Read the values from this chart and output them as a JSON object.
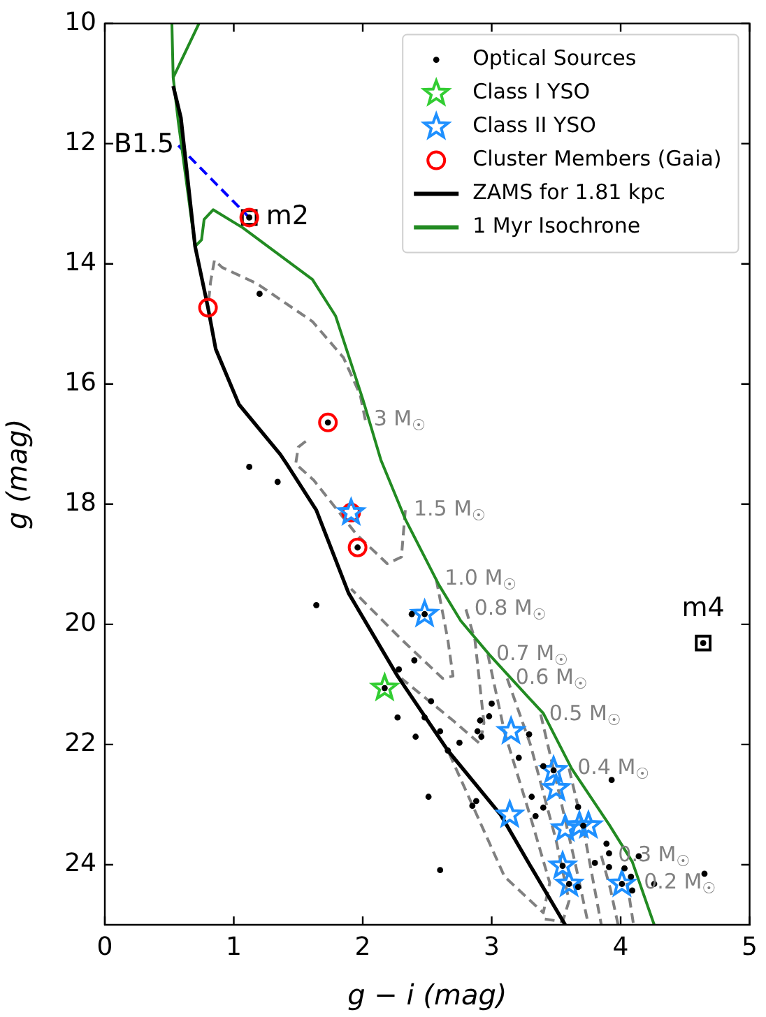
{
  "chart_data": {
    "type": "scatter",
    "xlabel": "g − i (mag)",
    "ylabel": "g (mag)",
    "xlim": [
      0,
      5
    ],
    "ylim": [
      25,
      10
    ],
    "xticks": [
      0,
      1,
      2,
      3,
      4,
      5
    ],
    "yticks": [
      10,
      12,
      14,
      16,
      18,
      20,
      22,
      24
    ],
    "grid": false,
    "legend": "top right",
    "annotations": [
      {
        "text": "B1.5",
        "x": 0.57,
        "y": 12.03
      },
      {
        "text": "m2",
        "x": 1.12,
        "y": 13.23
      },
      {
        "text": "m4",
        "x": 4.64,
        "y": 20.31
      }
    ],
    "series": [
      {
        "name": "Optical Sources",
        "type": "scatter",
        "marker": "circle",
        "color": "#000000",
        "x": [
          1.2,
          1.12,
          1.34,
          1.73,
          1.96,
          1.12,
          4.64,
          1.64,
          2.38,
          2.48,
          2.28,
          2.4,
          2.17,
          2.27,
          2.41,
          2.48,
          2.53,
          2.6,
          2.75,
          2.66,
          2.89,
          2.92,
          2.91,
          2.98,
          3.0,
          3.29,
          3.21,
          2.51,
          2.85,
          2.88,
          3.31,
          3.34,
          3.4,
          2.6,
          3.4,
          3.93,
          3.67,
          3.71,
          3.89,
          3.91,
          4.14,
          3.8,
          3.91,
          4.03,
          4.08,
          4.26,
          3.67,
          4.09,
          4.65,
          3.55,
          3.6,
          4.01,
          3.48
        ],
        "values": [
          14.5,
          17.38,
          17.63,
          16.64,
          18.72,
          13.23,
          20.31,
          19.68,
          19.83,
          19.83,
          20.75,
          20.6,
          21.06,
          21.55,
          21.87,
          21.55,
          21.28,
          21.78,
          21.97,
          22.1,
          21.78,
          21.87,
          21.6,
          21.53,
          21.32,
          21.83,
          22.22,
          22.87,
          23.02,
          22.94,
          22.87,
          23.19,
          23.05,
          24.09,
          22.36,
          22.59,
          23.04,
          23.35,
          23.65,
          23.81,
          23.86,
          23.97,
          24.04,
          24.06,
          24.2,
          24.32,
          24.37,
          24.43,
          24.15,
          24.02,
          24.32,
          24.32,
          22.43
        ]
      },
      {
        "name": "Class I YSO",
        "type": "scatter",
        "marker": "star",
        "color": "#32cd32",
        "x": [
          2.17
        ],
        "values": [
          21.06
        ]
      },
      {
        "name": "Class II YSO",
        "type": "scatter",
        "marker": "star",
        "color": "#1e90ff",
        "x": [
          1.91,
          2.48,
          3.15,
          3.14,
          3.48,
          3.5,
          3.57,
          3.68,
          3.75,
          3.55,
          3.6,
          4.01
        ],
        "values": [
          18.14,
          19.83,
          21.78,
          23.17,
          22.43,
          22.73,
          23.4,
          23.35,
          23.35,
          24.02,
          24.32,
          24.32
        ]
      },
      {
        "name": "Cluster Members (Gaia)",
        "type": "scatter",
        "marker": "circle",
        "color": "#ff0000",
        "x": [
          1.12,
          0.8,
          1.73,
          1.91,
          1.96
        ],
        "values": [
          13.23,
          14.73,
          16.64,
          18.14,
          18.72
        ]
      },
      {
        "name": "ZAMS for 1.81 kpc",
        "type": "line",
        "line_style": "solid",
        "color": "#000000",
        "x": [
          0.53,
          0.59,
          0.7,
          0.8,
          0.86,
          1.04,
          1.36,
          1.41,
          1.64,
          1.89,
          2.27,
          2.66,
          3.07,
          3.3,
          3.57
        ],
        "values": [
          11.04,
          11.57,
          13.71,
          14.73,
          15.42,
          16.34,
          17.17,
          17.33,
          18.1,
          19.48,
          20.86,
          22.1,
          23.17,
          24.02,
          25.0
        ]
      },
      {
        "name": "1 Myr Isochrone",
        "type": "line",
        "line_style": "solid",
        "color": "#228b22",
        "x": [
          0.52,
          0.53,
          0.73,
          0.53,
          0.57,
          0.7,
          0.75,
          0.77,
          0.84,
          1.07,
          1.61,
          1.79,
          2.0,
          2.14,
          2.33,
          2.59,
          2.76,
          2.98,
          3.27,
          3.4,
          3.62,
          3.91,
          4.09,
          4.26
        ],
        "values": [
          10.0,
          10.9,
          10.0,
          10.9,
          11.64,
          13.71,
          13.6,
          13.26,
          13.1,
          13.4,
          14.26,
          14.87,
          16.25,
          17.26,
          18.25,
          19.34,
          19.94,
          20.5,
          21.18,
          21.48,
          22.4,
          23.33,
          23.95,
          25.0
        ]
      },
      {
        "name": "3 M$_{☉}$",
        "type": "line",
        "line_style": "dashed",
        "color": "#808080",
        "x": [
          2.02,
          1.98,
          1.85,
          1.61,
          1.18,
          0.91,
          0.85,
          0.82,
          0.8
        ],
        "values": [
          16.6,
          16.18,
          15.56,
          14.96,
          14.33,
          14.06,
          13.94,
          14.3,
          14.73
        ]
      },
      {
        "name": "1.5 M$_{☉}$",
        "type": "line",
        "line_style": "dashed",
        "color": "#808080",
        "x": [
          2.33,
          2.3,
          2.19,
          1.95,
          1.62,
          1.48,
          1.5,
          1.56
        ],
        "values": [
          18.1,
          18.88,
          18.99,
          18.5,
          17.6,
          17.33,
          17.05,
          16.95
        ]
      },
      {
        "name": "1.0 M$_{☉}$",
        "type": "line",
        "line_style": "dashed",
        "color": "#808080",
        "x": [
          2.57,
          2.66,
          2.7,
          2.62,
          2.3,
          1.91
        ],
        "values": [
          19.25,
          20.26,
          20.86,
          20.9,
          20.25,
          19.41
        ]
      },
      {
        "name": "0.8 M$_{☉}$",
        "type": "line",
        "line_style": "dashed",
        "color": "#808080",
        "x": [
          2.8,
          2.87,
          2.94,
          2.91,
          2.7,
          2.3
        ],
        "values": [
          19.75,
          20.26,
          21.64,
          21.99,
          21.6,
          20.9
        ]
      },
      {
        "name": "0.7 M$_{☉}$",
        "type": "line",
        "line_style": "dashed",
        "color": "#808080",
        "x": [
          2.97,
          3.1,
          3.3,
          3.45,
          3.4,
          3.1,
          2.66
        ],
        "values": [
          20.5,
          21.8,
          23.2,
          24.3,
          24.8,
          24.2,
          22.1
        ]
      },
      {
        "name": "0.6 M$_{☉}$",
        "type": "line",
        "line_style": "dashed",
        "color": "#808080",
        "x": [
          3.12,
          3.3,
          3.5,
          3.6,
          3.55,
          3.4
        ],
        "values": [
          20.9,
          22.0,
          23.6,
          24.6,
          24.95,
          24.9
        ]
      },
      {
        "name": "0.5 M$_{☉}$",
        "type": "line",
        "line_style": "dashed",
        "color": "#808080",
        "x": [
          3.38,
          3.5,
          3.65,
          3.75
        ],
        "values": [
          21.5,
          22.6,
          24.0,
          25.0
        ]
      },
      {
        "name": "0.4 M$_{☉}$",
        "type": "line",
        "line_style": "dashed",
        "color": "#808080",
        "x": [
          3.6,
          3.72,
          3.85
        ],
        "values": [
          22.4,
          23.5,
          25.0
        ]
      },
      {
        "name": "0.3 M$_{☉}$",
        "type": "line",
        "line_style": "dashed",
        "color": "#808080",
        "x": [
          3.85,
          3.92,
          3.98
        ],
        "values": [
          23.85,
          24.4,
          25.0
        ]
      },
      {
        "name": "0.2 M$_{☉}$",
        "type": "line",
        "line_style": "dashed",
        "color": "#808080",
        "x": [
          4.05,
          4.1
        ],
        "values": [
          24.3,
          25.0
        ]
      },
      {
        "type": "line",
        "line_style": "dashed",
        "color": "#0000ff",
        "x": [
          0.57,
          1.12
        ],
        "values": [
          12.03,
          13.23
        ]
      },
      {
        "type": "scatter",
        "marker": "square",
        "color": "#000000",
        "x": [
          1.12,
          4.64
        ],
        "values": [
          13.23,
          20.31
        ]
      }
    ]
  }
}
